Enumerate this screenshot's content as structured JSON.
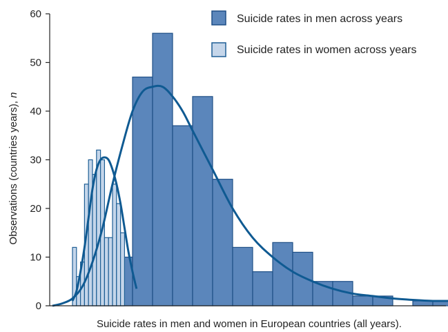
{
  "chart_data": {
    "type": "bar",
    "title": "",
    "xlabel": "Suicide rates in men and women in European countries (all years).",
    "ylabel_main": "Observations (countries years), ",
    "ylabel_italic": "n",
    "ylim": [
      0,
      60
    ],
    "yticks": [
      0,
      10,
      20,
      30,
      40,
      50,
      60
    ],
    "grid": false,
    "legend_position": "top-right",
    "colors": {
      "men_fill": "#5b86bb",
      "men_edge": "#1e4f86",
      "women_fill": "#c5d6ea",
      "women_edge": "#1e5f95",
      "curve": "#0f5a92",
      "axis": "#222222"
    },
    "series": [
      {
        "name": "Suicide rates in men across years",
        "kind": "histogram",
        "bin_width": 1,
        "bins_start": [
          0,
          1,
          2,
          3,
          4,
          5,
          6,
          7,
          8,
          9,
          10,
          11,
          12,
          13,
          14,
          15,
          16,
          17,
          18,
          19
        ],
        "values": [
          0,
          0,
          13,
          10,
          47,
          56,
          37,
          43,
          26,
          12,
          7,
          13,
          11,
          5,
          5,
          2,
          2,
          0,
          1,
          1
        ]
      },
      {
        "name": "Suicide rates in women across years",
        "kind": "histogram",
        "bin_width": 0.2,
        "bins_start": [
          1.0,
          1.2,
          1.4,
          1.6,
          1.8,
          2.0,
          2.2,
          2.4,
          2.6,
          2.8,
          3.0,
          3.2,
          3.4
        ],
        "values": [
          12,
          6,
          9,
          25,
          30,
          27,
          32,
          30,
          14,
          14,
          25,
          21,
          15
        ]
      }
    ],
    "fit_curves": [
      {
        "series": "Suicide rates in men across years",
        "x": [
          0,
          0.5,
          1,
          1.5,
          2,
          2.5,
          3,
          3.5,
          4,
          4.5,
          5,
          5.5,
          6,
          6.5,
          7,
          8,
          9,
          10,
          11,
          12,
          13,
          14,
          15,
          16,
          17,
          18,
          19,
          20
        ],
        "y": [
          0,
          0.5,
          1.5,
          4,
          9,
          16,
          25,
          33,
          40,
          44,
          45,
          45,
          43,
          40,
          36,
          28,
          20,
          14,
          10,
          7,
          5,
          3.5,
          2.5,
          2,
          1.5,
          1.2,
          1,
          1
        ]
      },
      {
        "series": "Suicide rates in women across years",
        "x": [
          1,
          1.2,
          1.4,
          1.6,
          1.8,
          2.0,
          2.2,
          2.4,
          2.6,
          2.8,
          3.0,
          3.2,
          3.4,
          3.6,
          3.8,
          4.0,
          4.2
        ],
        "y": [
          1,
          3,
          7,
          12,
          18,
          24,
          28,
          30,
          30.5,
          30,
          28,
          25,
          21,
          16,
          11,
          7,
          3.5
        ]
      }
    ]
  }
}
